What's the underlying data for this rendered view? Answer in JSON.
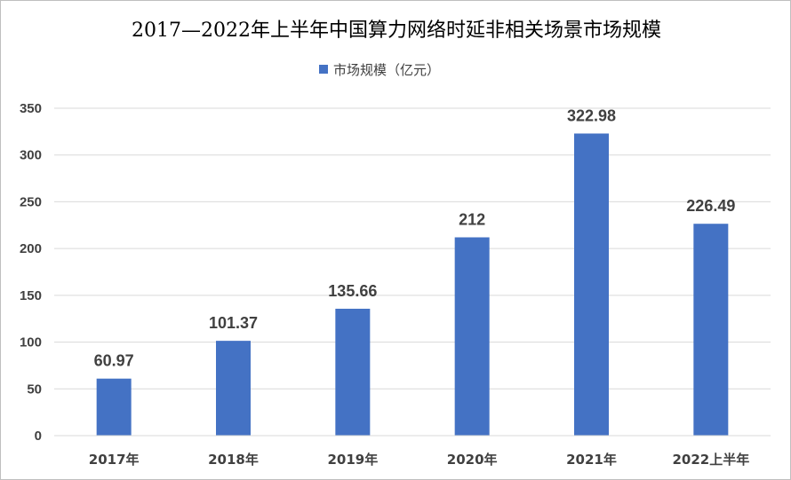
{
  "chart_data": {
    "type": "bar",
    "title": "2017—2022年上半年中国算力网络时延非相关场景市场规模",
    "categories": [
      "2017年",
      "2018年",
      "2019年",
      "2020年",
      "2021年",
      "2022上半年"
    ],
    "series": [
      {
        "name": "市场规模（亿元）",
        "values": [
          60.97,
          101.37,
          135.66,
          212,
          322.98,
          226.49
        ],
        "labels": [
          "60.97",
          "101.37",
          "135.66",
          "212",
          "322.98",
          "226.49"
        ],
        "color": "#4472C4"
      }
    ],
    "ylim": [
      0,
      350
    ],
    "yticks": [
      0,
      50,
      100,
      150,
      200,
      250,
      300,
      350
    ],
    "grid": true,
    "legend": "top-center",
    "xlabel": "",
    "ylabel": ""
  }
}
